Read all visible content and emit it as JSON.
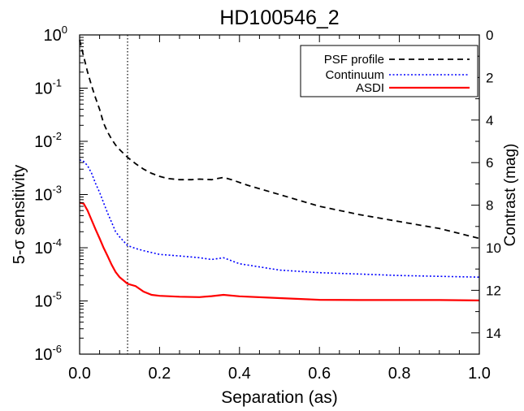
{
  "chart_data": {
    "type": "line",
    "title": "HD100546_2",
    "xlabel": "Separation (as)",
    "ylabel": "5-σ sensitivity",
    "y2label": "Contrast (mag)",
    "xlim": [
      0.0,
      1.0
    ],
    "ylim": [
      1e-06,
      1.0
    ],
    "yscale": "log",
    "y2lim": [
      0,
      15
    ],
    "y2_reversed": true,
    "x_ticks": [
      "0.0",
      "0.2",
      "0.4",
      "0.6",
      "0.8",
      "1.0"
    ],
    "y_ticks": [
      {
        "base": "10",
        "exp": "0"
      },
      {
        "base": "10",
        "exp": "-1"
      },
      {
        "base": "10",
        "exp": "-2"
      },
      {
        "base": "10",
        "exp": "-3"
      },
      {
        "base": "10",
        "exp": "-4"
      },
      {
        "base": "10",
        "exp": "-5"
      },
      {
        "base": "10",
        "exp": "-6"
      }
    ],
    "y2_ticks": [
      "0",
      "2",
      "4",
      "6",
      "8",
      "10",
      "12",
      "14"
    ],
    "vline_x": 0.12,
    "legend_position": "top-right",
    "grid": false,
    "series": [
      {
        "name": "PSF profile",
        "color": "#000000",
        "style": "dashed",
        "x": [
          0.0,
          0.01,
          0.02,
          0.03,
          0.04,
          0.05,
          0.06,
          0.07,
          0.08,
          0.09,
          0.1,
          0.12,
          0.14,
          0.16,
          0.18,
          0.2,
          0.22,
          0.25,
          0.28,
          0.3,
          0.33,
          0.36,
          0.38,
          0.42,
          0.5,
          0.6,
          0.7,
          0.8,
          0.9,
          1.0
        ],
        "y": [
          0.8,
          0.4,
          0.2,
          0.11,
          0.065,
          0.04,
          0.022,
          0.015,
          0.011,
          0.0085,
          0.007,
          0.005,
          0.0038,
          0.003,
          0.0025,
          0.0022,
          0.002,
          0.0019,
          0.0019,
          0.00195,
          0.0019,
          0.0021,
          0.0019,
          0.0015,
          0.001,
          0.0006,
          0.00042,
          0.00031,
          0.00023,
          0.00015
        ]
      },
      {
        "name": "Continuum",
        "color": "#0000ff",
        "style": "dotted",
        "x": [
          0.0,
          0.01,
          0.02,
          0.03,
          0.04,
          0.05,
          0.06,
          0.07,
          0.08,
          0.09,
          0.1,
          0.12,
          0.14,
          0.16,
          0.2,
          0.25,
          0.3,
          0.33,
          0.36,
          0.4,
          0.5,
          0.6,
          0.7,
          0.8,
          0.9,
          1.0
        ],
        "y": [
          0.0045,
          0.0042,
          0.0035,
          0.0025,
          0.0016,
          0.0011,
          0.0007,
          0.00045,
          0.0003,
          0.0002,
          0.00016,
          0.00011,
          9.7e-05,
          8.8e-05,
          7.5e-05,
          7e-05,
          6.5e-05,
          6e-05,
          6.5e-05,
          5e-05,
          3.8e-05,
          3.4e-05,
          3.2e-05,
          3e-05,
          2.9e-05,
          2.8e-05
        ]
      },
      {
        "name": "ASDI",
        "color": "#ff0000",
        "style": "solid",
        "x": [
          0.0,
          0.01,
          0.02,
          0.03,
          0.04,
          0.05,
          0.06,
          0.07,
          0.08,
          0.09,
          0.1,
          0.12,
          0.14,
          0.16,
          0.18,
          0.2,
          0.25,
          0.3,
          0.33,
          0.36,
          0.4,
          0.5,
          0.6,
          0.7,
          0.8,
          0.9,
          1.0
        ],
        "y": [
          0.0007,
          0.00068,
          0.0005,
          0.00033,
          0.00022,
          0.00015,
          0.0001,
          7e-05,
          4.8e-05,
          3.5e-05,
          2.8e-05,
          2.1e-05,
          1.9e-05,
          1.5e-05,
          1.3e-05,
          1.25e-05,
          1.2e-05,
          1.18e-05,
          1.23e-05,
          1.3e-05,
          1.22e-05,
          1.13e-05,
          1.05e-05,
          1.04e-05,
          1.04e-05,
          1.04e-05,
          1.02e-05
        ]
      }
    ]
  }
}
